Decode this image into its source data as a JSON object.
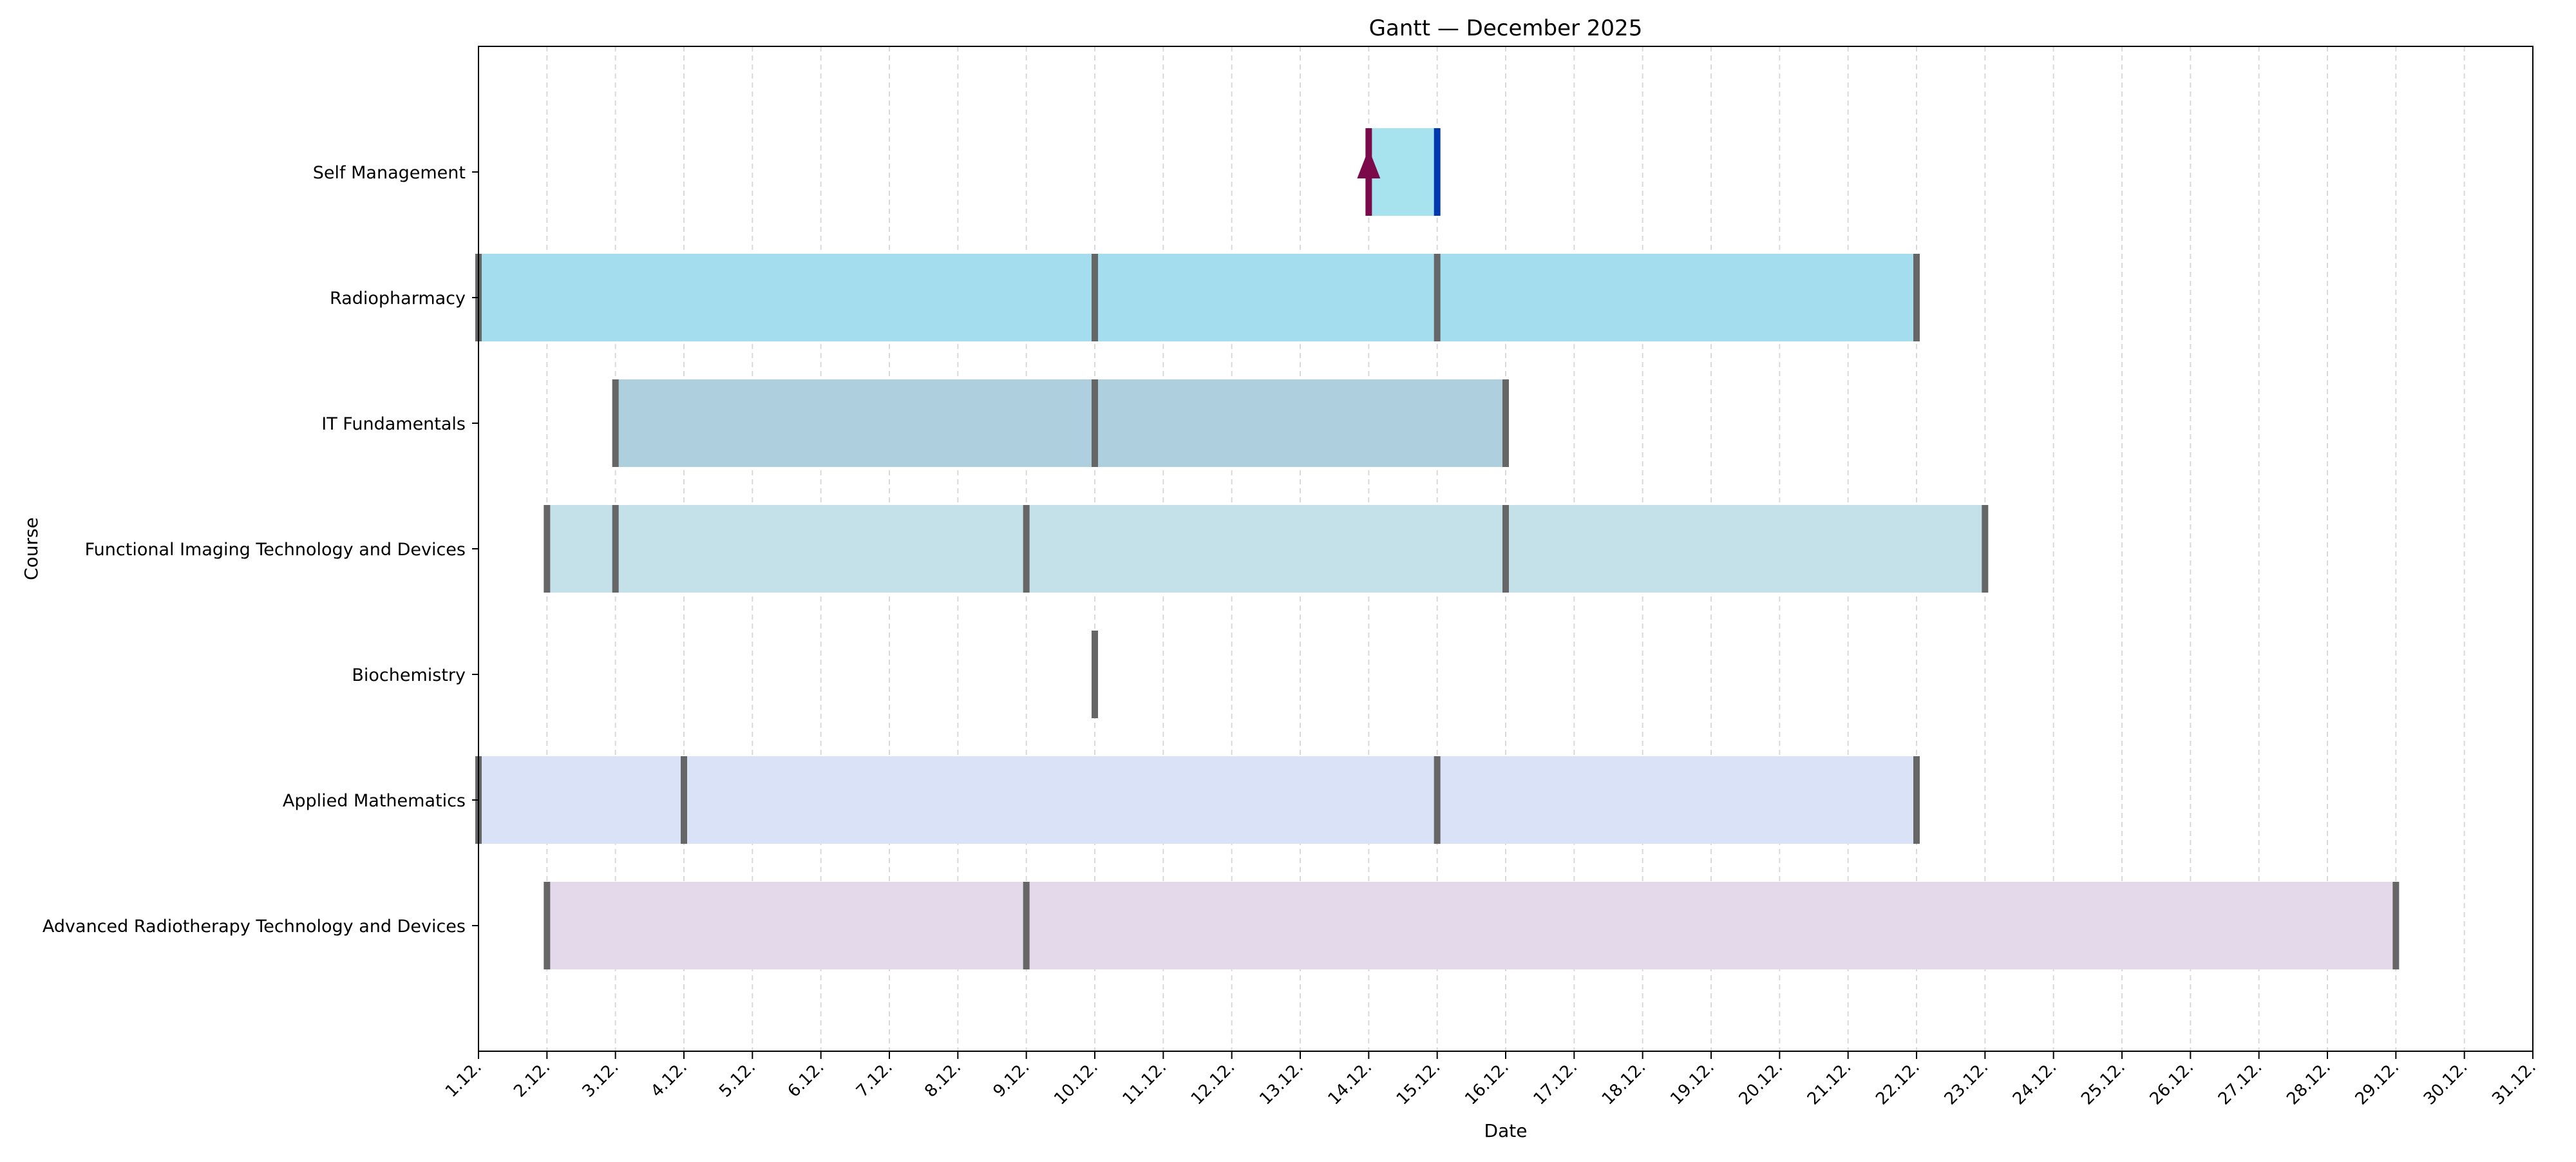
{
  "chart_data": {
    "type": "gantt",
    "title": "Gantt — December 2025",
    "xlabel": "Date",
    "ylabel": "Course",
    "x_ticks": [
      "1.12.",
      "2.12.",
      "3.12.",
      "4.12.",
      "5.12.",
      "6.12.",
      "7.12.",
      "8.12.",
      "9.12.",
      "10.12.",
      "11.12.",
      "12.12.",
      "13.12.",
      "14.12.",
      "15.12.",
      "16.12.",
      "17.12.",
      "18.12.",
      "19.12.",
      "20.12.",
      "21.12.",
      "22.12.",
      "23.12.",
      "24.12.",
      "25.12.",
      "26.12.",
      "27.12.",
      "28.12.",
      "29.12.",
      "30.12.",
      "31.12."
    ],
    "xlim": [
      "1.12.",
      "31.12."
    ],
    "grid": "vertical dashed",
    "courses": [
      {
        "name": "Self Management",
        "bar": {
          "start": "14.12.",
          "end": "15.12.",
          "color": "#a6e3ef"
        },
        "markers": [
          {
            "date": "14.12.",
            "color": "#7b0a4b",
            "arrow": true
          },
          {
            "date": "15.12.",
            "color": "#0038b0"
          }
        ]
      },
      {
        "name": "Radiopharmacy",
        "bar": {
          "start": "1.12.",
          "end": "22.12.",
          "color": "#a4ddee"
        },
        "markers": [
          {
            "date": "1.12."
          },
          {
            "date": "10.12."
          },
          {
            "date": "15.12."
          },
          {
            "date": "22.12."
          }
        ]
      },
      {
        "name": "IT Fundamentals",
        "bar": {
          "start": "3.12.",
          "end": "16.12.",
          "color": "#aecfdd"
        },
        "markers": [
          {
            "date": "3.12."
          },
          {
            "date": "10.12."
          },
          {
            "date": "16.12."
          }
        ]
      },
      {
        "name": "Functional Imaging Technology and Devices",
        "bar": {
          "start": "2.12.",
          "end": "23.12.",
          "color": "#c4e1ea"
        },
        "markers": [
          {
            "date": "2.12."
          },
          {
            "date": "3.12."
          },
          {
            "date": "9.12."
          },
          {
            "date": "16.12."
          },
          {
            "date": "23.12."
          }
        ]
      },
      {
        "name": "Biochemistry",
        "bar": null,
        "markers": [
          {
            "date": "10.12."
          }
        ]
      },
      {
        "name": "Applied Mathematics",
        "bar": {
          "start": "1.12.",
          "end": "22.12.",
          "color": "#dae2f8"
        },
        "markers": [
          {
            "date": "1.12."
          },
          {
            "date": "4.12."
          },
          {
            "date": "15.12."
          },
          {
            "date": "22.12."
          }
        ]
      },
      {
        "name": "Advanced Radiotherapy Technology and Devices",
        "bar": {
          "start": "2.12.",
          "end": "29.12.",
          "color": "#e4d9ea"
        },
        "markers": [
          {
            "date": "2.12."
          },
          {
            "date": "9.12."
          },
          {
            "date": "29.12."
          }
        ]
      }
    ],
    "marker_color": "#666666",
    "grid_color": "#d9d9d9"
  }
}
